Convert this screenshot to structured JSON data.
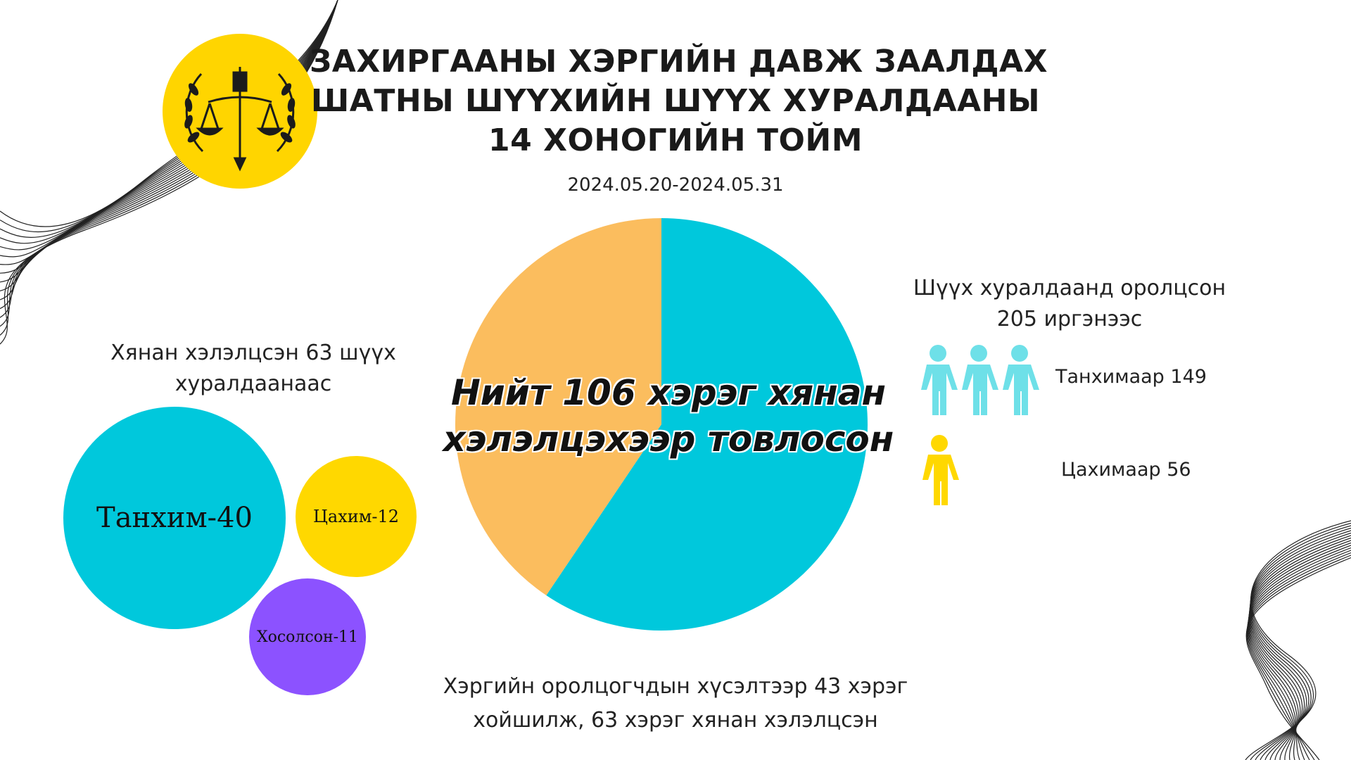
{
  "header": {
    "title_lines": [
      "ЗАХИРГААНЫ ХЭРГИЙН ДАВЖ ЗААЛДАХ",
      "ШАТНЫ ШҮҮХИЙН ШҮҮХ ХУРАЛДААНЫ",
      "14 ХОНОГИЙН ТОЙМ"
    ],
    "date_range": "2024.05.20-2024.05.31"
  },
  "logo": {
    "icon": "court-emblem-scales-icon",
    "color": "#FFD500"
  },
  "left_panel": {
    "caption_lines": [
      "Хянан хэлэлцсэн 63 шүүх",
      "хуралдаанаас"
    ],
    "bubbles": [
      {
        "label": "Танхим-40",
        "value": 40,
        "color": "#00C8DC"
      },
      {
        "label": "Цахим-12",
        "value": 12,
        "color": "#FFD800"
      },
      {
        "label": "Хосолсон-11",
        "value": 11,
        "color": "#8C52FF"
      }
    ]
  },
  "center_text_lines": [
    "Нийт 106 хэрэг хянан",
    "хэлэлцэхээр товлосон"
  ],
  "bottom_caption_lines": [
    "Хэргийн оролцогчдын хүсэлтээр 43 хэрэг",
    "хойшилж, 63 хэрэг хянан хэлэлцсэн"
  ],
  "right_panel": {
    "caption_lines": [
      "Шүүх хуралдаанд оролцсон",
      "205 иргэнээс"
    ],
    "groups": [
      {
        "label": "Танхимаар 149",
        "icon": "three-people-icon",
        "color": "#6EE0E8"
      },
      {
        "label": "Цахимаар 56",
        "icon": "person-icon",
        "color": "#FFD800"
      }
    ]
  },
  "chart_data": {
    "type": "pie",
    "total": 106,
    "slices": [
      {
        "value": 63,
        "color": "#00C8DC"
      },
      {
        "value": 43,
        "color": "#FBBD5E"
      }
    ]
  }
}
